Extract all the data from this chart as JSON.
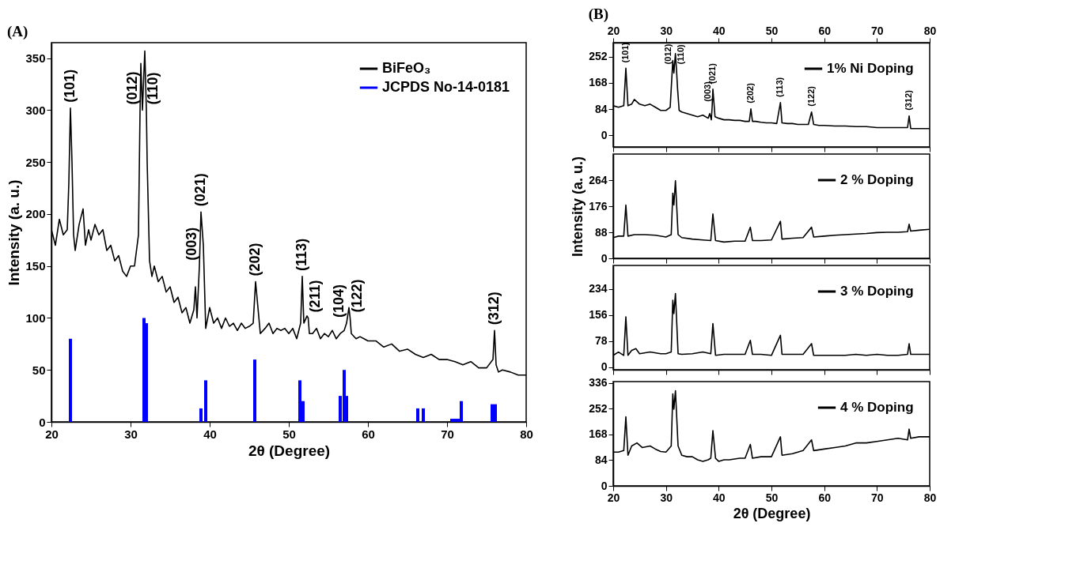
{
  "chart_data": [
    {
      "type": "line",
      "title": "(A)",
      "xlabel": "2θ  (Degree)",
      "ylabel": "Intensity (a. u.)",
      "xlim": [
        20,
        80
      ],
      "xticks": [
        20,
        30,
        40,
        50,
        60,
        70,
        80
      ],
      "ylim": [
        0,
        365
      ],
      "yticks": [
        0,
        50,
        100,
        150,
        200,
        250,
        300,
        350
      ],
      "legend": "top right",
      "series": [
        {
          "name": "BiFeO₃",
          "color": "#000000",
          "type": "line",
          "x": [
            20,
            20.5,
            21,
            21.5,
            22,
            22.2,
            22.4,
            22.6,
            22.8,
            23,
            23.5,
            24,
            24.3,
            24.7,
            25,
            25.5,
            26,
            26.5,
            27,
            27.5,
            28,
            28.5,
            29,
            29.5,
            30,
            30.5,
            31,
            31.2,
            31.3,
            31.5,
            31.8,
            32.0,
            32.1,
            32.4,
            32.7,
            33,
            33.5,
            34,
            34.5,
            35,
            35.5,
            36,
            36.5,
            37,
            37.5,
            38,
            38.2,
            38.4,
            38.7,
            38.9,
            39.2,
            39.5,
            40,
            40.5,
            41,
            41.5,
            42,
            42.5,
            43,
            43.5,
            44,
            44.5,
            45,
            45.5,
            45.8,
            46.1,
            46.4,
            47,
            47.5,
            48,
            48.5,
            49,
            49.5,
            50,
            50.5,
            51,
            51.5,
            51.7,
            51.9,
            52.3,
            52.45,
            52.6,
            53,
            53.5,
            54,
            54.5,
            55,
            55.5,
            56,
            56.5,
            57,
            57.3,
            57.6,
            57.75,
            57.9,
            58.5,
            59,
            59.5,
            60,
            61,
            62,
            63,
            64,
            65,
            66,
            67,
            68,
            69,
            70,
            71,
            72,
            73,
            74,
            75,
            75.8,
            76,
            76.2,
            76.5,
            77,
            78,
            79,
            80
          ],
          "values": [
            185,
            170,
            195,
            180,
            185,
            230,
            302,
            250,
            180,
            165,
            190,
            205,
            170,
            185,
            175,
            190,
            180,
            185,
            165,
            170,
            155,
            160,
            145,
            140,
            150,
            150,
            180,
            300,
            345,
            300,
            357,
            300,
            250,
            155,
            140,
            150,
            135,
            140,
            125,
            130,
            115,
            120,
            105,
            110,
            95,
            108,
            130,
            100,
            150,
            202,
            170,
            90,
            110,
            95,
            100,
            90,
            100,
            92,
            95,
            88,
            95,
            90,
            92,
            95,
            135,
            110,
            85,
            90,
            95,
            85,
            90,
            88,
            90,
            85,
            90,
            80,
            95,
            140,
            95,
            102,
            100,
            85,
            85,
            90,
            80,
            85,
            82,
            88,
            80,
            85,
            88,
            95,
            110,
            100,
            85,
            80,
            82,
            80,
            78,
            78,
            72,
            75,
            68,
            70,
            65,
            62,
            65,
            60,
            60,
            58,
            55,
            58,
            52,
            52,
            60,
            88,
            55,
            48,
            50,
            48,
            45,
            45
          ]
        },
        {
          "name": "JCPDS No-14-0181",
          "color": "#0000ff",
          "type": "bar",
          "x": [
            22.4,
            31.7,
            32.0,
            38.9,
            39.5,
            45.7,
            51.4,
            51.8,
            56.5,
            57.0,
            57.3,
            66.3,
            67.0,
            70.6,
            71.0,
            71.4,
            71.8,
            75.7,
            76.1
          ],
          "values": [
            80,
            100,
            95,
            13,
            40,
            60,
            40,
            20,
            25,
            50,
            25,
            13,
            13,
            3,
            3,
            3,
            20,
            17,
            17
          ]
        }
      ],
      "annotations": [
        {
          "text": "(101)",
          "x": 22.4,
          "y": 302
        },
        {
          "text": "(012)",
          "x": 31.2,
          "y": 300
        },
        {
          "text": "(110)",
          "x": 32.0,
          "y": 300
        },
        {
          "text": "(003)",
          "x": 38.7,
          "y": 150
        },
        {
          "text": "(021)",
          "x": 38.9,
          "y": 202
        },
        {
          "text": "(202)",
          "x": 45.8,
          "y": 135
        },
        {
          "text": "(113)",
          "x": 51.7,
          "y": 140
        },
        {
          "text": "(211)",
          "x": 52.45,
          "y": 100
        },
        {
          "text": "(104)",
          "x": 57.3,
          "y": 95
        },
        {
          "text": "(122)",
          "x": 57.75,
          "y": 100
        },
        {
          "text": "(312)",
          "x": 76.0,
          "y": 88
        }
      ]
    },
    {
      "type": "line",
      "title": "(B)",
      "xlim": [
        20,
        80
      ],
      "xticks": [
        20,
        30,
        40,
        50,
        60,
        70,
        80
      ],
      "x2lim": [
        20,
        80
      ],
      "x2ticks": [
        20,
        30,
        40,
        50,
        60,
        70,
        80
      ],
      "tick_labels": "y",
      "ylim": [
        -37,
        297
      ],
      "yticks": [
        0,
        84,
        168,
        252
      ],
      "legend": "top right",
      "series": [
        {
          "name": "1% Ni Doping",
          "color": "#000000",
          "x": [
            20,
            21,
            22,
            22.4,
            22.8,
            23.5,
            24,
            25,
            26,
            27,
            28,
            29,
            30,
            30.8,
            31.2,
            31.3,
            31.5,
            31.8,
            32.0,
            32.2,
            32.5,
            33,
            34,
            35,
            36,
            37,
            38,
            38.3,
            38.6,
            38.75,
            38.9,
            39.3,
            40,
            41,
            42,
            43,
            44,
            45,
            45.8,
            46.1,
            46.4,
            47,
            48,
            49,
            50,
            51,
            51.7,
            52,
            53,
            54,
            55,
            56,
            57,
            57.6,
            58,
            59,
            60,
            62,
            64,
            66,
            68,
            70,
            72,
            74,
            75.8,
            76.1,
            76.4,
            78,
            80
          ],
          "values": [
            95,
            90,
            95,
            215,
            95,
            100,
            115,
            100,
            95,
            100,
            90,
            80,
            80,
            90,
            210,
            240,
            200,
            262,
            210,
            150,
            80,
            75,
            70,
            65,
            60,
            65,
            55,
            70,
            50,
            90,
            148,
            60,
            55,
            50,
            50,
            48,
            48,
            45,
            45,
            85,
            45,
            45,
            42,
            40,
            40,
            38,
            105,
            40,
            38,
            38,
            35,
            35,
            35,
            75,
            35,
            32,
            32,
            30,
            30,
            28,
            28,
            25,
            25,
            25,
            25,
            62,
            22,
            22,
            22
          ]
        }
      ],
      "annotations": [
        {
          "text": "(101)",
          "x": 22.4,
          "y": 215
        },
        {
          "text": "(012)",
          "x": 31.2,
          "y": 210
        },
        {
          "text": "(110)",
          "x": 32.0,
          "y": 210
        },
        {
          "text": "(003)",
          "x": 38.75,
          "y": 90
        },
        {
          "text": "(021)",
          "x": 38.9,
          "y": 148
        },
        {
          "text": "(202)",
          "x": 46.1,
          "y": 85
        },
        {
          "text": "(113)",
          "x": 51.7,
          "y": 105
        },
        {
          "text": "(122)",
          "x": 57.6,
          "y": 75
        },
        {
          "text": "(312)",
          "x": 76.1,
          "y": 62
        }
      ]
    },
    {
      "type": "line",
      "ylabel": "Intensity (a. u.)",
      "xlim": [
        20,
        80
      ],
      "xticks": [
        20,
        30,
        40,
        50,
        60,
        70,
        80
      ],
      "tick_labels": "y",
      "ylim": [
        0,
        352
      ],
      "yticks": [
        0,
        88,
        176,
        264
      ],
      "legend": "top right",
      "series": [
        {
          "name": "2 % Doping",
          "color": "#000000",
          "x": [
            20,
            21,
            22,
            22.4,
            22.8,
            24,
            26,
            28,
            30,
            31,
            31.3,
            31.5,
            31.8,
            32.3,
            33,
            35,
            37,
            38.5,
            38.9,
            39.4,
            41,
            43,
            45,
            46,
            46.4,
            48,
            50,
            51.7,
            52,
            54,
            56,
            57.6,
            58,
            60,
            62,
            64,
            66,
            68,
            70,
            72,
            74,
            75.8,
            76.1,
            76.4,
            78,
            80
          ],
          "values": [
            70,
            75,
            75,
            180,
            75,
            80,
            80,
            78,
            72,
            80,
            220,
            180,
            262,
            80,
            70,
            65,
            62,
            60,
            150,
            60,
            55,
            58,
            58,
            105,
            60,
            60,
            62,
            125,
            65,
            68,
            70,
            105,
            72,
            75,
            78,
            80,
            82,
            84,
            87,
            88,
            88,
            90,
            115,
            92,
            95,
            98
          ]
        }
      ]
    },
    {
      "type": "line",
      "xlim": [
        20,
        80
      ],
      "xticks": [
        20,
        30,
        40,
        50,
        60,
        70,
        80
      ],
      "tick_labels": "y",
      "ylim": [
        -8,
        304
      ],
      "yticks": [
        0,
        78,
        156,
        234
      ],
      "legend": "top right",
      "series": [
        {
          "name": "3 % Doping",
          "color": "#000000",
          "x": [
            20,
            21,
            22,
            22.4,
            22.8,
            23.5,
            24.3,
            25,
            27,
            29,
            30,
            31,
            31.3,
            31.5,
            31.8,
            32.3,
            33,
            35,
            37,
            38.5,
            38.9,
            39.4,
            41,
            43,
            45,
            46,
            46.4,
            48,
            50,
            51.7,
            52,
            54,
            56,
            57.6,
            58,
            60,
            62,
            64,
            66,
            68,
            70,
            72,
            74,
            75.8,
            76.1,
            76.4,
            78,
            80
          ],
          "values": [
            35,
            45,
            35,
            150,
            35,
            50,
            55,
            40,
            45,
            40,
            40,
            45,
            200,
            160,
            220,
            40,
            38,
            40,
            45,
            40,
            130,
            35,
            38,
            38,
            38,
            80,
            38,
            38,
            35,
            95,
            38,
            38,
            38,
            70,
            35,
            35,
            35,
            35,
            38,
            35,
            38,
            35,
            35,
            38,
            70,
            38,
            38,
            38
          ]
        }
      ]
    },
    {
      "type": "line",
      "xlabel": "2θ (Degree)",
      "xlim": [
        20,
        80
      ],
      "xticks": [
        20,
        30,
        40,
        50,
        60,
        70,
        80
      ],
      "ylim": [
        0,
        340
      ],
      "yticks": [
        0,
        84,
        168,
        252,
        336
      ],
      "legend": "top right",
      "series": [
        {
          "name": "4 % Doping",
          "color": "#000000",
          "x": [
            20,
            21,
            22,
            22.4,
            22.8,
            23.5,
            24.5,
            25.5,
            27,
            28,
            29,
            30,
            31,
            31.3,
            31.5,
            31.8,
            32.3,
            33,
            34,
            35,
            36,
            37,
            38,
            38.5,
            38.9,
            39.4,
            40,
            41,
            42,
            44,
            45,
            46,
            46.4,
            48,
            50,
            51.7,
            52,
            54,
            56,
            57.6,
            58,
            60,
            62,
            64,
            66,
            68,
            70,
            72,
            74,
            75.8,
            76.1,
            76.4,
            78,
            80
          ],
          "values": [
            110,
            110,
            115,
            225,
            100,
            130,
            140,
            125,
            130,
            120,
            112,
            110,
            130,
            300,
            250,
            310,
            130,
            100,
            95,
            95,
            85,
            80,
            85,
            90,
            180,
            90,
            80,
            85,
            85,
            90,
            90,
            135,
            90,
            95,
            95,
            160,
            100,
            105,
            115,
            150,
            115,
            120,
            125,
            130,
            140,
            140,
            145,
            150,
            155,
            150,
            185,
            155,
            160,
            160
          ]
        }
      ]
    }
  ]
}
